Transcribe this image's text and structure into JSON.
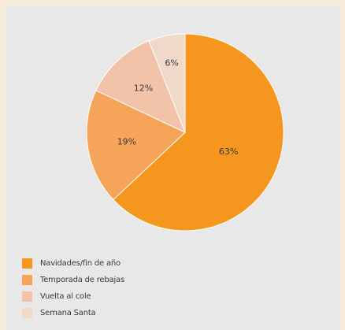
{
  "chart_data": {
    "type": "pie",
    "slices": [
      {
        "label": "Navidades/fin de año",
        "value": 63,
        "display": "63%",
        "color": "#f5961f"
      },
      {
        "label": "Temporada de rebajas",
        "value": 19,
        "display": "19%",
        "color": "#f5a45a"
      },
      {
        "label": "Vuelta al cole",
        "value": 12,
        "display": "12%",
        "color": "#f2c3a8"
      },
      {
        "label": "Semana Santa",
        "value": 6,
        "display": "6%",
        "color": "#f0d9c8"
      }
    ],
    "legend_position": "bottom-left"
  }
}
